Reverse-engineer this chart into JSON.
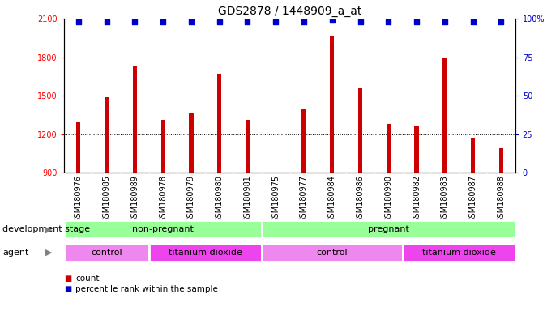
{
  "title": "GDS2878 / 1448909_a_at",
  "samples": [
    "GSM180976",
    "GSM180985",
    "GSM180989",
    "GSM180978",
    "GSM180979",
    "GSM180980",
    "GSM180981",
    "GSM180975",
    "GSM180977",
    "GSM180984",
    "GSM180986",
    "GSM180990",
    "GSM180982",
    "GSM180983",
    "GSM180987",
    "GSM180988"
  ],
  "counts": [
    1290,
    1490,
    1730,
    1310,
    1370,
    1670,
    1310,
    870,
    1400,
    1960,
    1560,
    1280,
    1270,
    1800,
    1170,
    1090
  ],
  "percentile": [
    98,
    98,
    98,
    98,
    98,
    98,
    98,
    98,
    98,
    99,
    98,
    98,
    98,
    98,
    98,
    98
  ],
  "bar_color": "#cc0000",
  "dot_color": "#0000cc",
  "ylim_left": [
    900,
    2100
  ],
  "ylim_right": [
    0,
    100
  ],
  "yticks_left": [
    900,
    1200,
    1500,
    1800,
    2100
  ],
  "yticks_right": [
    0,
    25,
    50,
    75,
    100
  ],
  "grid_lines": [
    1200,
    1500,
    1800
  ],
  "dev_stage_color": "#99ff99",
  "agent_control_color": "#ee88ee",
  "agent_tio2_color": "#ee44ee",
  "xlabel_dev": "development stage",
  "xlabel_agent": "agent",
  "legend_count_label": "count",
  "legend_pct_label": "percentile rank within the sample",
  "bar_width": 0.15,
  "dot_size": 25,
  "dot_marker": "s",
  "title_fontsize": 10,
  "tick_fontsize": 7,
  "label_fontsize": 8,
  "annotation_fontsize": 8,
  "right_axis_color": "#0000cc",
  "xticklabel_fontsize": 7,
  "sample_bg_color": "#d8d8d8"
}
